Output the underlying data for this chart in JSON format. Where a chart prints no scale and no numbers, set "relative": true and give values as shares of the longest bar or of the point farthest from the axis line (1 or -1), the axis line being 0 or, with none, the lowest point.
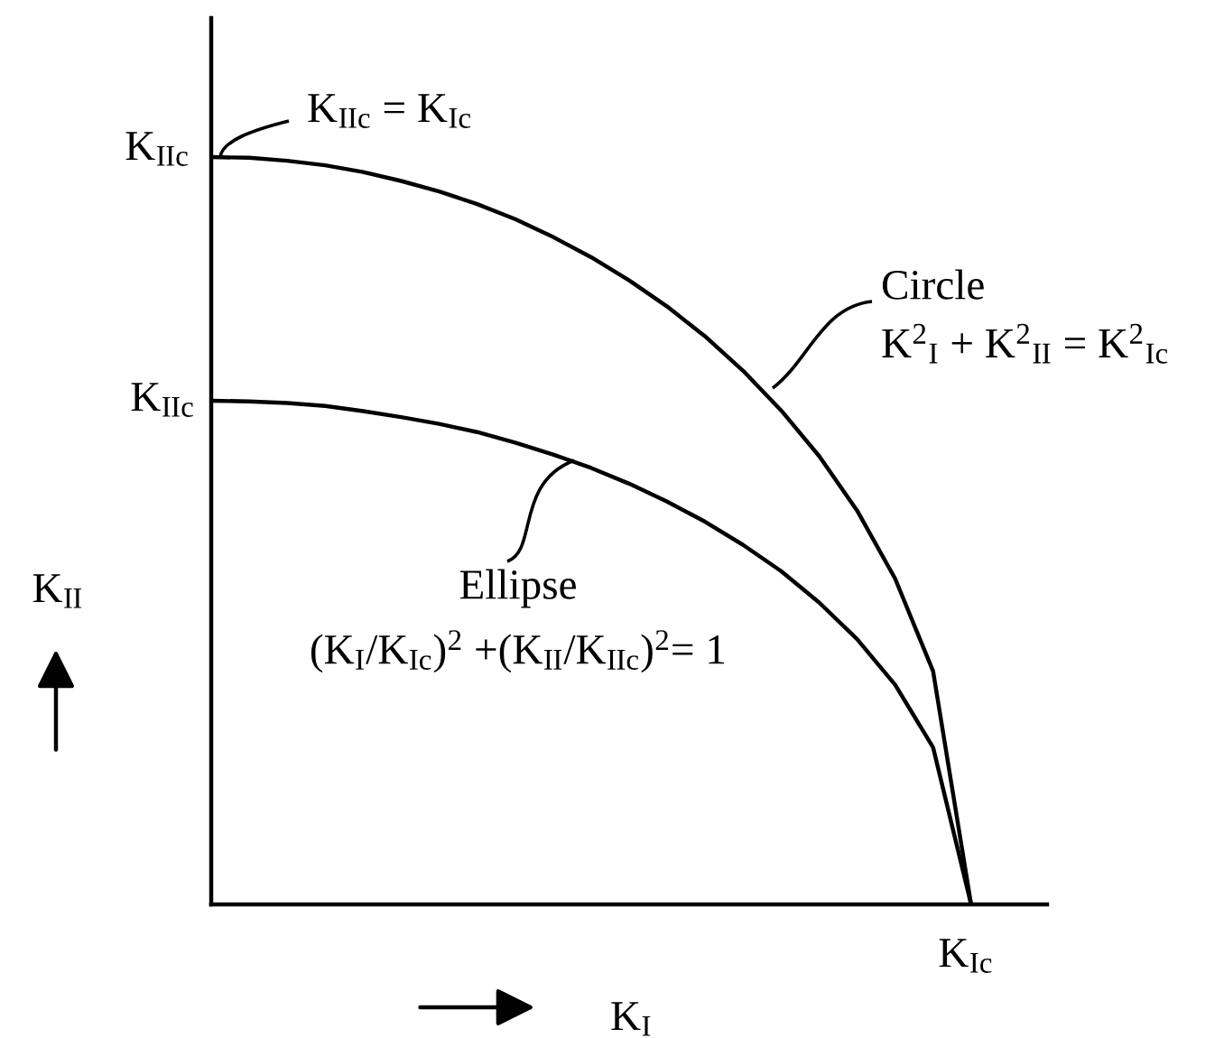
{
  "chart_data": {
    "type": "line",
    "relative": true,
    "xlabel": "K$_{I}$",
    "ylabel": "K$_{II}$",
    "categories": [
      null,
      null,
      null,
      null,
      null,
      null,
      null,
      null,
      null,
      null,
      null,
      null,
      null,
      null,
      null,
      null,
      null,
      null,
      null,
      null,
      null,
      null,
      null
    ],
    "series": [
      {
        "color": "#000000",
        "values": [
          1,
          0.999,
          0.995,
          0.989,
          0.98,
          0.968,
          0.954,
          0.937,
          0.917,
          0.893,
          0.866,
          0.835,
          0.8,
          0.76,
          0.714,
          0.661,
          0.6,
          0.527,
          0.436,
          0.312,
          0,
          null,
          null
        ]
      },
      {
        "color": "#000000",
        "values": [
          0.674,
          0.673,
          0.671,
          0.667,
          0.66,
          0.652,
          0.643,
          0.632,
          0.618,
          0.602,
          0.584,
          0.563,
          0.539,
          0.512,
          0.481,
          0.446,
          0.404,
          0.355,
          0.294,
          0.21,
          0,
          null,
          null
        ]
      }
    ],
    "annotations": [
      "K$_{IIc}$",
      "K$_{IIc}$",
      "K$_{IIc}$ = K$_{Ic}$",
      "K$^{2}$$_{I}$ + K$^{2}$$_{II}$ = K$^{2}$$_{Ic}$",
      "(K$_{I}$/K$_{Ic}$)$^{2}$ +(K$_{II}$/K$_{IIc}$)$^{2}$= 1",
      "K$_{Ic}$",
      "Circle",
      "Ellipse"
    ],
    "marker": "none",
    "line_style": "solid",
    "grid": false,
    "legend": false
  }
}
